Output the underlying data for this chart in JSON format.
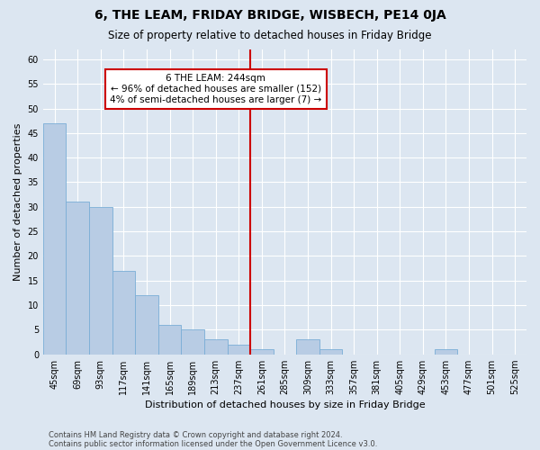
{
  "title": "6, THE LEAM, FRIDAY BRIDGE, WISBECH, PE14 0JA",
  "subtitle": "Size of property relative to detached houses in Friday Bridge",
  "xlabel": "Distribution of detached houses by size in Friday Bridge",
  "ylabel": "Number of detached properties",
  "footer1": "Contains HM Land Registry data © Crown copyright and database right 2024.",
  "footer2": "Contains public sector information licensed under the Open Government Licence v3.0.",
  "annotation_line1": "6 THE LEAM: 244sqm",
  "annotation_line2": "← 96% of detached houses are smaller (152)",
  "annotation_line3": "4% of semi-detached houses are larger (7) →",
  "bar_categories": [
    "45sqm",
    "69sqm",
    "93sqm",
    "117sqm",
    "141sqm",
    "165sqm",
    "189sqm",
    "213sqm",
    "237sqm",
    "261sqm",
    "285sqm",
    "309sqm",
    "333sqm",
    "357sqm",
    "381sqm",
    "405sqm",
    "429sqm",
    "453sqm",
    "477sqm",
    "501sqm",
    "525sqm"
  ],
  "bar_values": [
    47,
    31,
    30,
    17,
    12,
    6,
    5,
    3,
    2,
    1,
    0,
    3,
    1,
    0,
    0,
    0,
    0,
    1,
    0,
    0,
    0
  ],
  "bar_color": "#b8cce4",
  "bar_edge_color": "#7aaed6",
  "vline_color": "#cc0000",
  "vline_x": 8.5,
  "annotation_box_color": "#cc0000",
  "background_color": "#dce6f1",
  "ylim": [
    0,
    62
  ],
  "yticks": [
    0,
    5,
    10,
    15,
    20,
    25,
    30,
    35,
    40,
    45,
    50,
    55,
    60
  ],
  "grid_color": "#ffffff",
  "title_fontsize": 10,
  "subtitle_fontsize": 8.5,
  "xlabel_fontsize": 8,
  "ylabel_fontsize": 8,
  "tick_fontsize": 7,
  "annotation_fontsize": 7.5,
  "footer_fontsize": 6
}
